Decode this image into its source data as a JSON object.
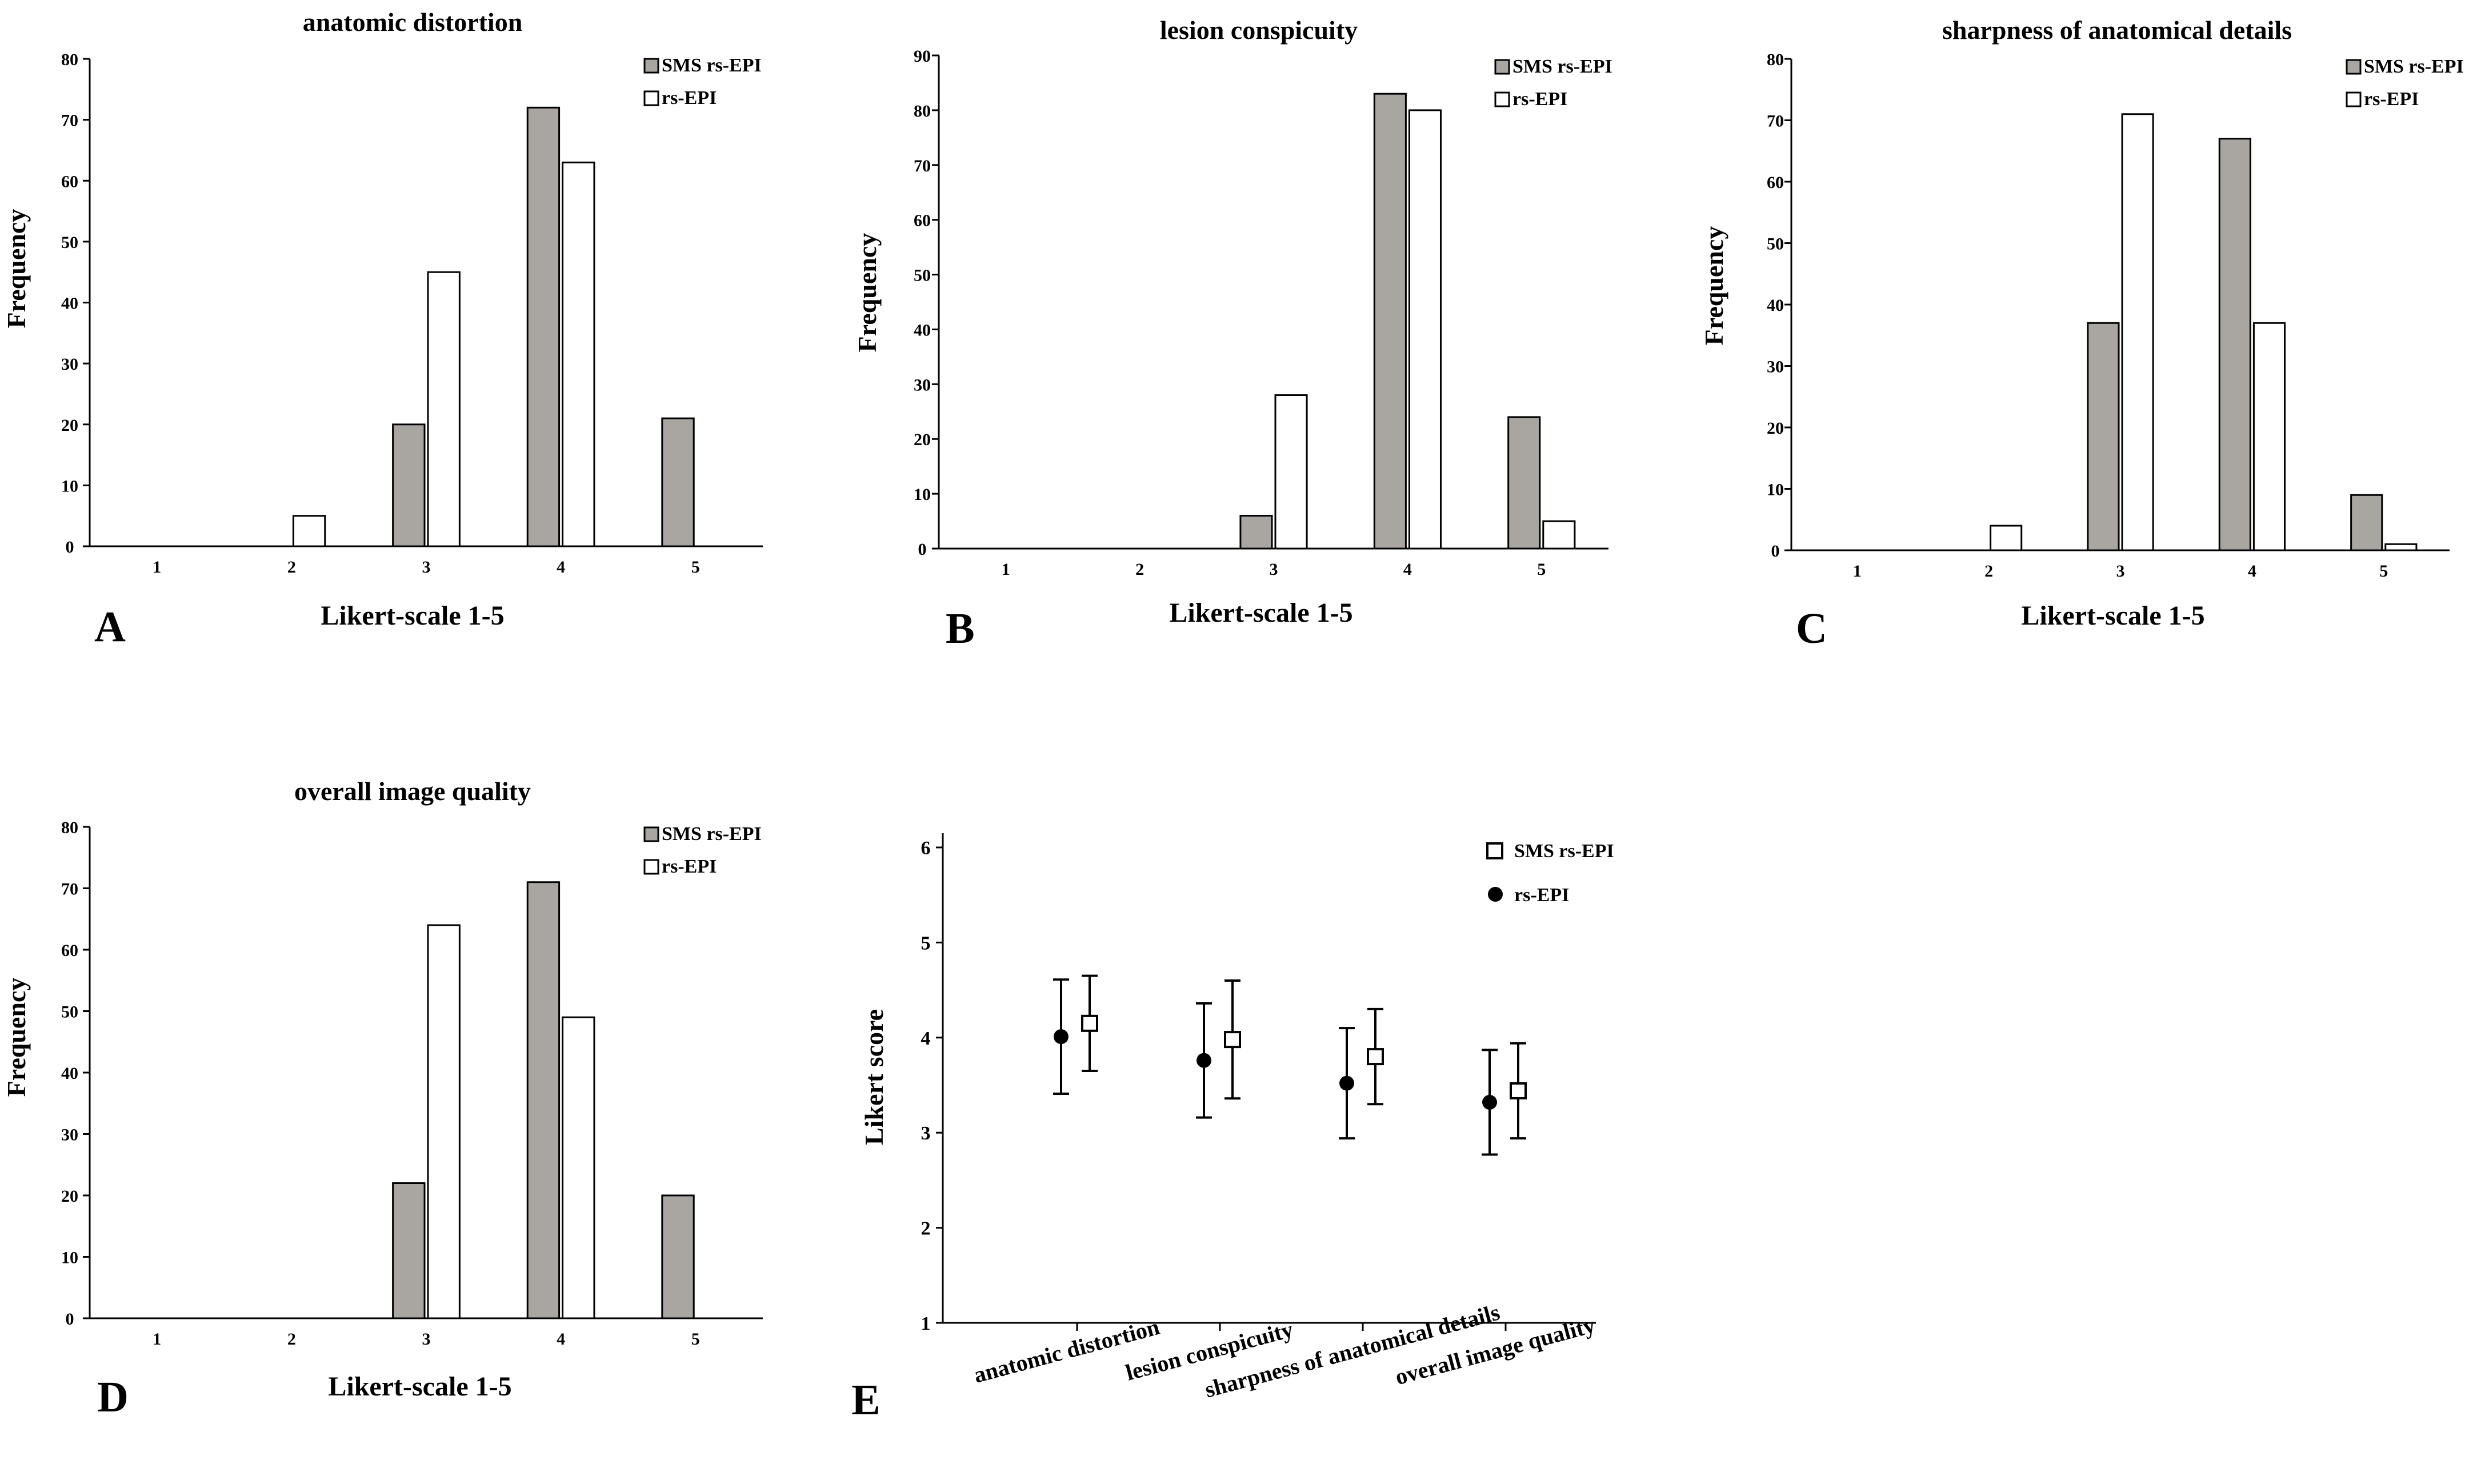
{
  "chart_data": [
    {
      "type": "bar",
      "panel_letter": "A",
      "title": "anatomic distortion",
      "xlabel": "Likert-scale 1-5",
      "ylabel": "Frequency",
      "categories": [
        "1",
        "2",
        "3",
        "4",
        "5"
      ],
      "ylim": [
        0,
        80
      ],
      "yticks": [
        "0",
        "10",
        "20",
        "30",
        "40",
        "50",
        "60",
        "70",
        "80"
      ],
      "series": [
        {
          "name": "SMS rs-EPI",
          "values": [
            0,
            0,
            20,
            72,
            21
          ]
        },
        {
          "name": "rs-EPI",
          "values": [
            0,
            5,
            45,
            63,
            0
          ]
        }
      ],
      "legend_position": "top-right"
    },
    {
      "type": "bar",
      "panel_letter": "B",
      "title": "lesion conspicuity",
      "xlabel": "Likert-scale 1-5",
      "ylabel": "Frequency",
      "categories": [
        "1",
        "2",
        "3",
        "4",
        "5"
      ],
      "ylim": [
        0,
        90
      ],
      "yticks": [
        "0",
        "10",
        "20",
        "30",
        "40",
        "50",
        "60",
        "70",
        "80",
        "90"
      ],
      "series": [
        {
          "name": "SMS rs-EPI",
          "values": [
            0,
            0,
            6,
            83,
            24
          ]
        },
        {
          "name": "rs-EPI",
          "values": [
            0,
            0,
            28,
            80,
            5
          ]
        }
      ],
      "legend_position": "top-right"
    },
    {
      "type": "bar",
      "panel_letter": "C",
      "title": "sharpness of anatomical details",
      "xlabel": "Likert-scale 1-5",
      "ylabel": "Frequency",
      "categories": [
        "1",
        "2",
        "3",
        "4",
        "5"
      ],
      "ylim": [
        0,
        80
      ],
      "yticks": [
        "0",
        "10",
        "20",
        "30",
        "40",
        "50",
        "60",
        "70",
        "80"
      ],
      "series": [
        {
          "name": "SMS rs-EPI",
          "values": [
            0,
            0,
            37,
            67,
            9
          ]
        },
        {
          "name": "rs-EPI",
          "values": [
            0,
            4,
            71,
            37,
            1
          ]
        }
      ],
      "legend_position": "top-right"
    },
    {
      "type": "bar",
      "panel_letter": "D",
      "title": "overall image quality",
      "xlabel": "Likert-scale 1-5",
      "ylabel": "Frequency",
      "categories": [
        "1",
        "2",
        "3",
        "4",
        "5"
      ],
      "ylim": [
        0,
        80
      ],
      "yticks": [
        "0",
        "10",
        "20",
        "30",
        "40",
        "50",
        "60",
        "70",
        "80"
      ],
      "series": [
        {
          "name": "SMS rs-EPI",
          "values": [
            0,
            0,
            22,
            71,
            20
          ]
        },
        {
          "name": "rs-EPI",
          "values": [
            0,
            0,
            64,
            49,
            0
          ]
        }
      ],
      "legend_position": "top-right"
    },
    {
      "type": "scatter",
      "panel_letter": "E",
      "title": "",
      "xlabel": "",
      "ylabel": "Likert score",
      "categories": [
        "anatomic distortion",
        "lesion conspicuity",
        "sharpness of anatomical details",
        "overall image quality"
      ],
      "ylim": [
        1,
        6
      ],
      "yticks": [
        "1",
        "2",
        "3",
        "4",
        "5",
        "6"
      ],
      "series": [
        {
          "name": "SMS rs-EPI",
          "marker": "open-square",
          "means": [
            4.15,
            3.98,
            3.8,
            3.44
          ],
          "sd": [
            0.5,
            0.62,
            0.5,
            0.5
          ]
        },
        {
          "name": "rs-EPI",
          "marker": "filled-circle",
          "means": [
            4.01,
            3.76,
            3.52,
            3.32
          ],
          "sd": [
            0.6,
            0.6,
            0.58,
            0.55
          ]
        }
      ],
      "legend_position": "top-right"
    }
  ],
  "colors": {
    "sms_bar_fill": "#a9a6a2",
    "rs_bar_fill": "#ffffff",
    "ink": "#000000"
  }
}
